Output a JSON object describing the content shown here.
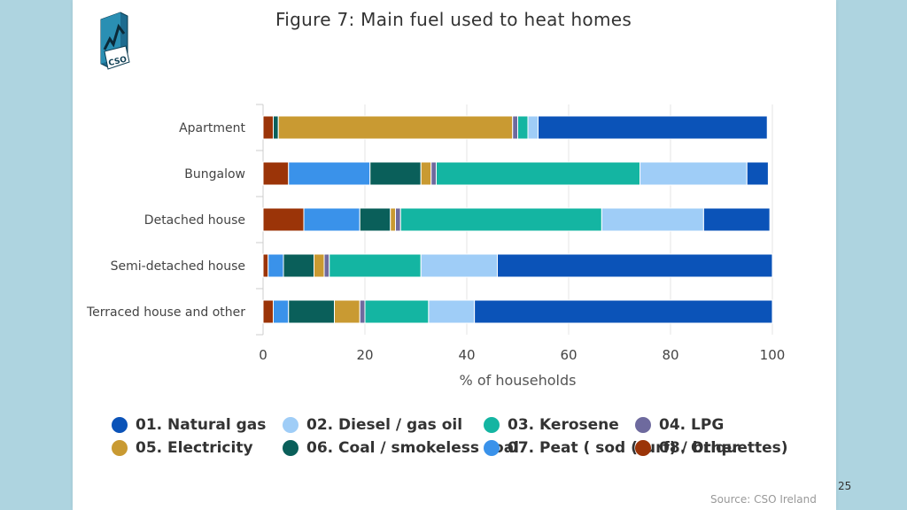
{
  "slide": {
    "title": "Figure 7: Main fuel used to heat homes",
    "source": "Source: CSO Ireland",
    "page_number": "25",
    "logo_text": "CSO"
  },
  "chart_data": {
    "type": "bar",
    "orientation": "horizontal",
    "stacked": true,
    "title": "Figure 7: Main fuel used to heat homes",
    "xlabel": "% of households",
    "ylabel": "",
    "xlim": [
      0,
      100
    ],
    "xticks": [
      0,
      20,
      40,
      60,
      80,
      100
    ],
    "grid": true,
    "legend_position": "bottom",
    "categories": [
      "Apartment",
      "Bungalow",
      "Detached house",
      "Semi-detached house",
      "Terraced house and other"
    ],
    "stack_order": [
      "08. Other",
      "07. Peat ( sod (turf) / briquettes)",
      "06. Coal / smokeless coal",
      "05. Electricity",
      "04. LPG",
      "03. Kerosene",
      "02. Diesel / gas oil",
      "01. Natural gas"
    ],
    "series": [
      {
        "name": "01. Natural gas",
        "color": "#0b53b8",
        "values": [
          45.0,
          4.2,
          13.0,
          54.0,
          58.5
        ]
      },
      {
        "name": "02. Diesel / gas oil",
        "color": "#9fcdf7",
        "values": [
          2.0,
          21.0,
          20.0,
          15.0,
          9.0
        ]
      },
      {
        "name": "03. Kerosene",
        "color": "#14b5a2",
        "values": [
          2.0,
          40.0,
          39.5,
          18.0,
          12.5
        ]
      },
      {
        "name": "04. LPG",
        "color": "#6e6a9e",
        "values": [
          1.0,
          1.0,
          1.0,
          1.0,
          1.0
        ]
      },
      {
        "name": "05. Electricity",
        "color": "#c99a32",
        "values": [
          46.0,
          2.0,
          1.0,
          2.0,
          5.0
        ]
      },
      {
        "name": "06. Coal / smokeless coal",
        "color": "#0a5f5a",
        "values": [
          1.0,
          10.0,
          6.0,
          6.0,
          9.0
        ]
      },
      {
        "name": "07. Peat ( sod (turf) / briquettes)",
        "color": "#3a92ea",
        "values": [
          0.0,
          16.0,
          11.0,
          3.0,
          3.0
        ]
      },
      {
        "name": "08. Other",
        "color": "#9b3408",
        "values": [
          2.0,
          5.0,
          8.0,
          1.0,
          2.0
        ]
      }
    ]
  }
}
